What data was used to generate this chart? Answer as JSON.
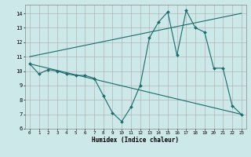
{
  "xlabel": "Humidex (Indice chaleur)",
  "background_color": "#cce8e8",
  "line_color": "#1a6b6b",
  "grid_color": "#aaaaaa",
  "xlim": [
    -0.5,
    23.5
  ],
  "ylim": [
    6,
    14.6
  ],
  "yticks": [
    6,
    7,
    8,
    9,
    10,
    11,
    12,
    13,
    14
  ],
  "xticks": [
    0,
    1,
    2,
    3,
    4,
    5,
    6,
    7,
    8,
    9,
    10,
    11,
    12,
    13,
    14,
    15,
    16,
    17,
    18,
    19,
    20,
    21,
    22,
    23
  ],
  "series1": {
    "x": [
      0,
      1,
      2,
      3,
      4,
      5,
      6,
      7,
      8,
      9,
      10,
      11,
      12,
      13,
      14,
      15,
      16,
      17,
      18,
      19,
      20,
      21,
      22,
      23
    ],
    "y": [
      10.5,
      9.8,
      10.1,
      10.0,
      9.8,
      9.7,
      9.7,
      9.5,
      8.3,
      7.1,
      6.5,
      7.5,
      9.0,
      12.3,
      13.4,
      14.1,
      11.1,
      14.2,
      13.0,
      12.7,
      10.2,
      10.2,
      7.6,
      7.0
    ]
  },
  "series2_x": [
    0,
    23
  ],
  "series2_y": [
    10.5,
    7.0
  ],
  "series3_x": [
    0,
    23
  ],
  "series3_y": [
    11.0,
    14.0
  ]
}
